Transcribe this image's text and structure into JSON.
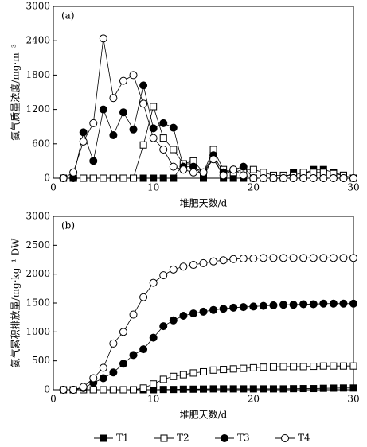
{
  "chart_data": [
    {
      "type": "line",
      "annotation": "(a)",
      "y_label": "氨气质量浓度/mg·m⁻³",
      "x_label": "堆肥天数/d",
      "xlim": [
        0,
        30
      ],
      "xticks": [
        0,
        10,
        20,
        30
      ],
      "ylim": [
        0,
        3000
      ],
      "yticks": [
        0,
        600,
        1200,
        1800,
        2400,
        3000
      ],
      "x": [
        1,
        2,
        3,
        4,
        5,
        6,
        7,
        8,
        9,
        10,
        11,
        12,
        13,
        14,
        15,
        16,
        17,
        18,
        19,
        20,
        21,
        22,
        23,
        24,
        25,
        26,
        27,
        28,
        29,
        30
      ],
      "series": [
        {
          "name": "T1",
          "color": "#000000",
          "marker": "square",
          "filled": true,
          "values": [
            0,
            0,
            0,
            0,
            0,
            0,
            0,
            0,
            0,
            0,
            0,
            0,
            250,
            250,
            0,
            400,
            0,
            0,
            0,
            0,
            0,
            0,
            0,
            100,
            80,
            150,
            150,
            100,
            50,
            0
          ]
        },
        {
          "name": "T2",
          "color": "#000000",
          "marker": "square",
          "filled": false,
          "values": [
            0,
            0,
            0,
            0,
            0,
            0,
            0,
            0,
            580,
            1250,
            700,
            500,
            250,
            300,
            100,
            500,
            150,
            100,
            150,
            150,
            100,
            50,
            50,
            50,
            100,
            100,
            100,
            80,
            50,
            0
          ]
        },
        {
          "name": "T3",
          "color": "#000000",
          "marker": "circle",
          "filled": true,
          "values": [
            0,
            0,
            800,
            300,
            1200,
            750,
            1150,
            850,
            1620,
            870,
            960,
            880,
            200,
            200,
            100,
            400,
            100,
            150,
            200,
            0,
            0,
            0,
            0,
            0,
            0,
            0,
            0,
            0,
            0,
            0
          ]
        },
        {
          "name": "T4",
          "color": "#000000",
          "marker": "circle",
          "filled": false,
          "values": [
            0,
            100,
            640,
            960,
            2440,
            1400,
            1700,
            1800,
            1300,
            700,
            500,
            200,
            150,
            100,
            100,
            330,
            50,
            150,
            50,
            0,
            0,
            0,
            0,
            0,
            0,
            0,
            0,
            0,
            0,
            0
          ]
        }
      ]
    },
    {
      "type": "line",
      "annotation": "(b)",
      "y_label": "氨气累积排放量/mg·kg⁻¹ DW",
      "x_label": "堆肥天数/d",
      "xlim": [
        0,
        30
      ],
      "xticks": [
        0,
        10,
        20,
        30
      ],
      "ylim": [
        0,
        3000
      ],
      "yticks": [
        0,
        500,
        1000,
        1500,
        2000,
        2500,
        3000
      ],
      "x": [
        1,
        2,
        3,
        4,
        5,
        6,
        7,
        8,
        9,
        10,
        11,
        12,
        13,
        14,
        15,
        16,
        17,
        18,
        19,
        20,
        21,
        22,
        23,
        24,
        25,
        26,
        27,
        28,
        29,
        30
      ],
      "series": [
        {
          "color": "#000000",
          "marker": "square",
          "filled": true,
          "values": [
            0,
            0,
            0,
            0,
            0,
            0,
            0,
            0,
            0,
            0,
            5,
            5,
            10,
            10,
            12,
            15,
            15,
            15,
            15,
            15,
            15,
            15,
            15,
            18,
            20,
            20,
            25,
            28,
            30,
            30
          ]
        },
        {
          "color": "#000000",
          "marker": "square",
          "filled": false,
          "values": [
            0,
            0,
            0,
            0,
            0,
            0,
            0,
            0,
            30,
            100,
            180,
            230,
            260,
            290,
            310,
            340,
            350,
            360,
            370,
            380,
            390,
            395,
            400,
            400,
            400,
            405,
            410,
            410,
            410,
            410
          ]
        },
        {
          "color": "#000000",
          "marker": "circle",
          "filled": true,
          "values": [
            0,
            0,
            30,
            120,
            200,
            300,
            450,
            600,
            700,
            900,
            1100,
            1200,
            1280,
            1320,
            1350,
            1380,
            1400,
            1420,
            1430,
            1440,
            1450,
            1460,
            1470,
            1470,
            1480,
            1480,
            1490,
            1490,
            1490,
            1490
          ]
        },
        {
          "color": "#000000",
          "marker": "circle",
          "filled": false,
          "values": [
            0,
            0,
            50,
            200,
            380,
            800,
            1000,
            1300,
            1600,
            1850,
            1980,
            2080,
            2130,
            2160,
            2190,
            2220,
            2240,
            2260,
            2270,
            2270,
            2280,
            2280,
            2280,
            2280,
            2280,
            2280,
            2280,
            2280,
            2280,
            2280
          ]
        }
      ]
    }
  ]
}
